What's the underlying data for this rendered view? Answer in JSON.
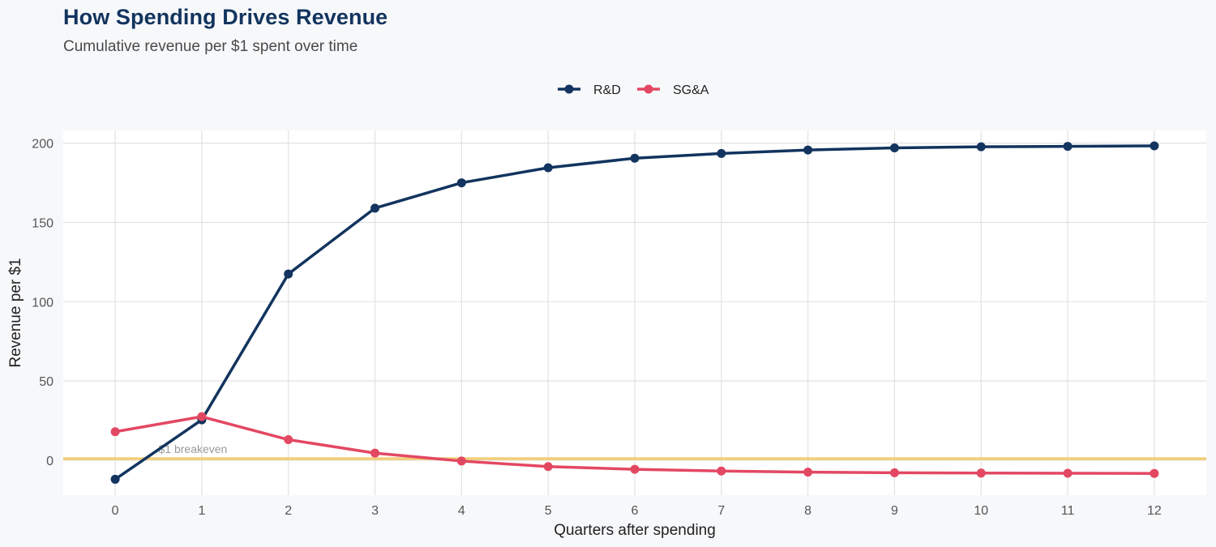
{
  "chart_data": {
    "type": "line",
    "title": "How Spending Drives Revenue",
    "subtitle": "Cumulative revenue per $1 spent over time",
    "xlabel": "Quarters after spending",
    "ylabel": "Revenue per $1",
    "x": [
      0,
      1,
      2,
      3,
      4,
      5,
      6,
      7,
      8,
      9,
      10,
      11,
      12
    ],
    "xlim": [
      -0.6,
      12.6
    ],
    "ylim": [
      -22,
      208
    ],
    "yticks": [
      0,
      50,
      100,
      150,
      200
    ],
    "grid": true,
    "legend_position": "top-center",
    "series": [
      {
        "name": "R&D",
        "color": "#12345e",
        "values": [
          -12,
          25.5,
          117.5,
          159,
          175,
          184.5,
          190.5,
          193.5,
          195.7,
          197,
          197.7,
          198,
          198.3
        ]
      },
      {
        "name": "SG&A",
        "color": "#e34862",
        "values": [
          18,
          27.5,
          13,
          4.5,
          -0.5,
          -4,
          -5.7,
          -6.8,
          -7.5,
          -7.9,
          -8.1,
          -8.2,
          -8.3
        ]
      }
    ],
    "reference_line": {
      "y": 1,
      "label": "$1 breakeven",
      "color": "#f2c96b"
    }
  }
}
